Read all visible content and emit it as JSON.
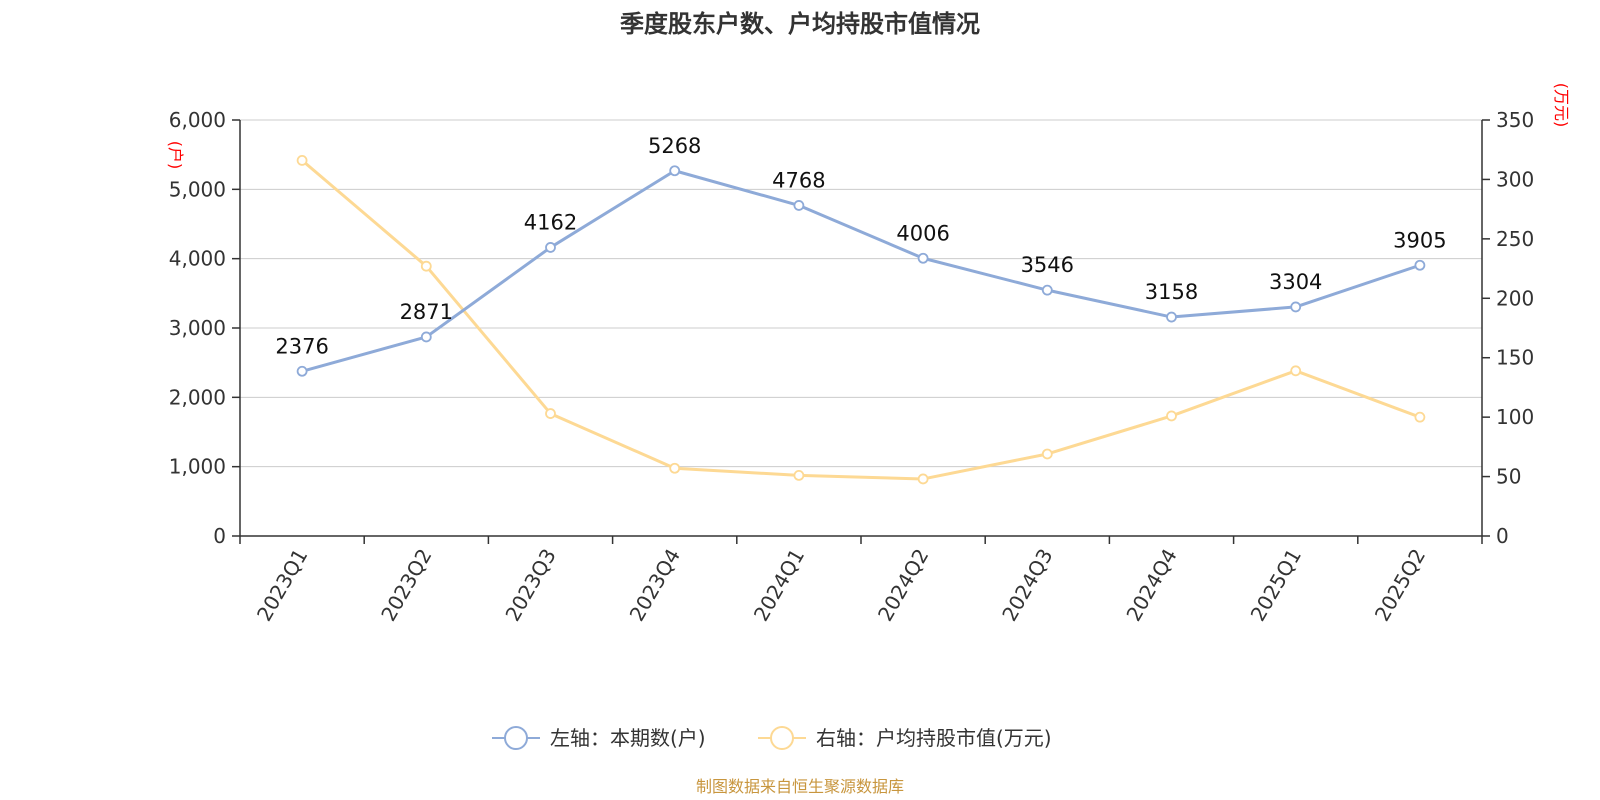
{
  "chart_data": {
    "type": "line",
    "title": "季度股东户数、户均持股市值情况",
    "categories": [
      "2023Q1",
      "2023Q2",
      "2023Q3",
      "2023Q4",
      "2024Q1",
      "2024Q2",
      "2024Q3",
      "2024Q4",
      "2025Q1",
      "2025Q2"
    ],
    "left_axis": {
      "unit": "(户)",
      "ylim": [
        0,
        6000
      ],
      "ticks": [
        0,
        1000,
        2000,
        3000,
        4000,
        5000,
        6000
      ],
      "tick_labels": [
        "0",
        "1,000",
        "2,000",
        "3,000",
        "4,000",
        "5,000",
        "6,000"
      ]
    },
    "right_axis": {
      "unit": "(万元)",
      "ylim": [
        0,
        350
      ],
      "ticks": [
        0,
        50,
        100,
        150,
        200,
        250,
        300,
        350
      ],
      "tick_labels": [
        "0",
        "50",
        "100",
        "150",
        "200",
        "250",
        "300",
        "350"
      ]
    },
    "series": [
      {
        "name": "左轴：本期数(户)",
        "axis": "left",
        "color": "#8eaad8",
        "values": [
          2376,
          2871,
          4162,
          5268,
          4768,
          4006,
          3546,
          3158,
          3304,
          3905
        ],
        "data_labels": [
          "2376",
          "2871",
          "4162",
          "5268",
          "4768",
          "4006",
          "3546",
          "3158",
          "3304",
          "3905"
        ]
      },
      {
        "name": "右轴：户均持股市值(万元)",
        "axis": "right",
        "color": "#fdd994",
        "values": [
          316,
          227,
          103,
          57,
          51,
          48,
          69,
          101,
          139,
          100
        ]
      }
    ],
    "grid": true,
    "legend_position": "bottom-center"
  },
  "source_text": "制图数据来自恒生聚源数据库"
}
